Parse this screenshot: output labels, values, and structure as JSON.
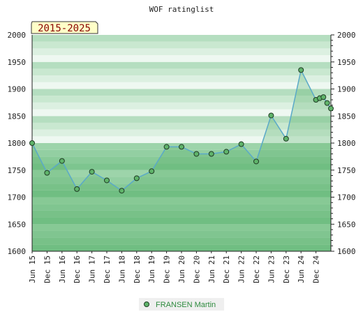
{
  "chart_data": {
    "type": "area",
    "title": "WOF ratinglist",
    "range_label": "2015-2025",
    "ylim": [
      1600,
      2000
    ],
    "yticks": [
      1600,
      1650,
      1700,
      1750,
      1800,
      1850,
      1900,
      1950,
      2000
    ],
    "xtick_labels": [
      "Jun 15",
      "Dec 15",
      "Jun 16",
      "Dec 16",
      "Jun 17",
      "Dec 17",
      "Jun 18",
      "Dec 18",
      "Jun 19",
      "Dec 19",
      "Jun 20",
      "Dec 20",
      "Jun 21",
      "Dec 21",
      "Jun 22",
      "Dec 22",
      "Jun 23",
      "Dec 23",
      "Jun 24",
      "Dec 24"
    ],
    "series": [
      {
        "name": "FRANSEN Martin",
        "x": [
          0,
          1,
          2,
          3,
          4,
          5,
          6,
          7,
          8,
          9,
          10,
          11,
          12,
          13,
          14,
          15,
          16,
          17,
          18,
          19.0,
          19.25,
          19.5,
          19.75,
          20.0
        ],
        "values": [
          1800,
          1745,
          1767,
          1715,
          1747,
          1731,
          1712,
          1735,
          1748,
          1793,
          1793,
          1780,
          1780,
          1784,
          1798,
          1766,
          1851,
          1808,
          1935,
          1880,
          1883,
          1885,
          1874,
          1864
        ]
      }
    ],
    "legend_position": "bottom-center",
    "colors": {
      "line": "#5aa9c8",
      "marker_fill": "#5fb36a",
      "marker_stroke": "#1f3b24",
      "range_box_fill": "#ffffc8",
      "legend_text": "#2e8b3e"
    }
  }
}
